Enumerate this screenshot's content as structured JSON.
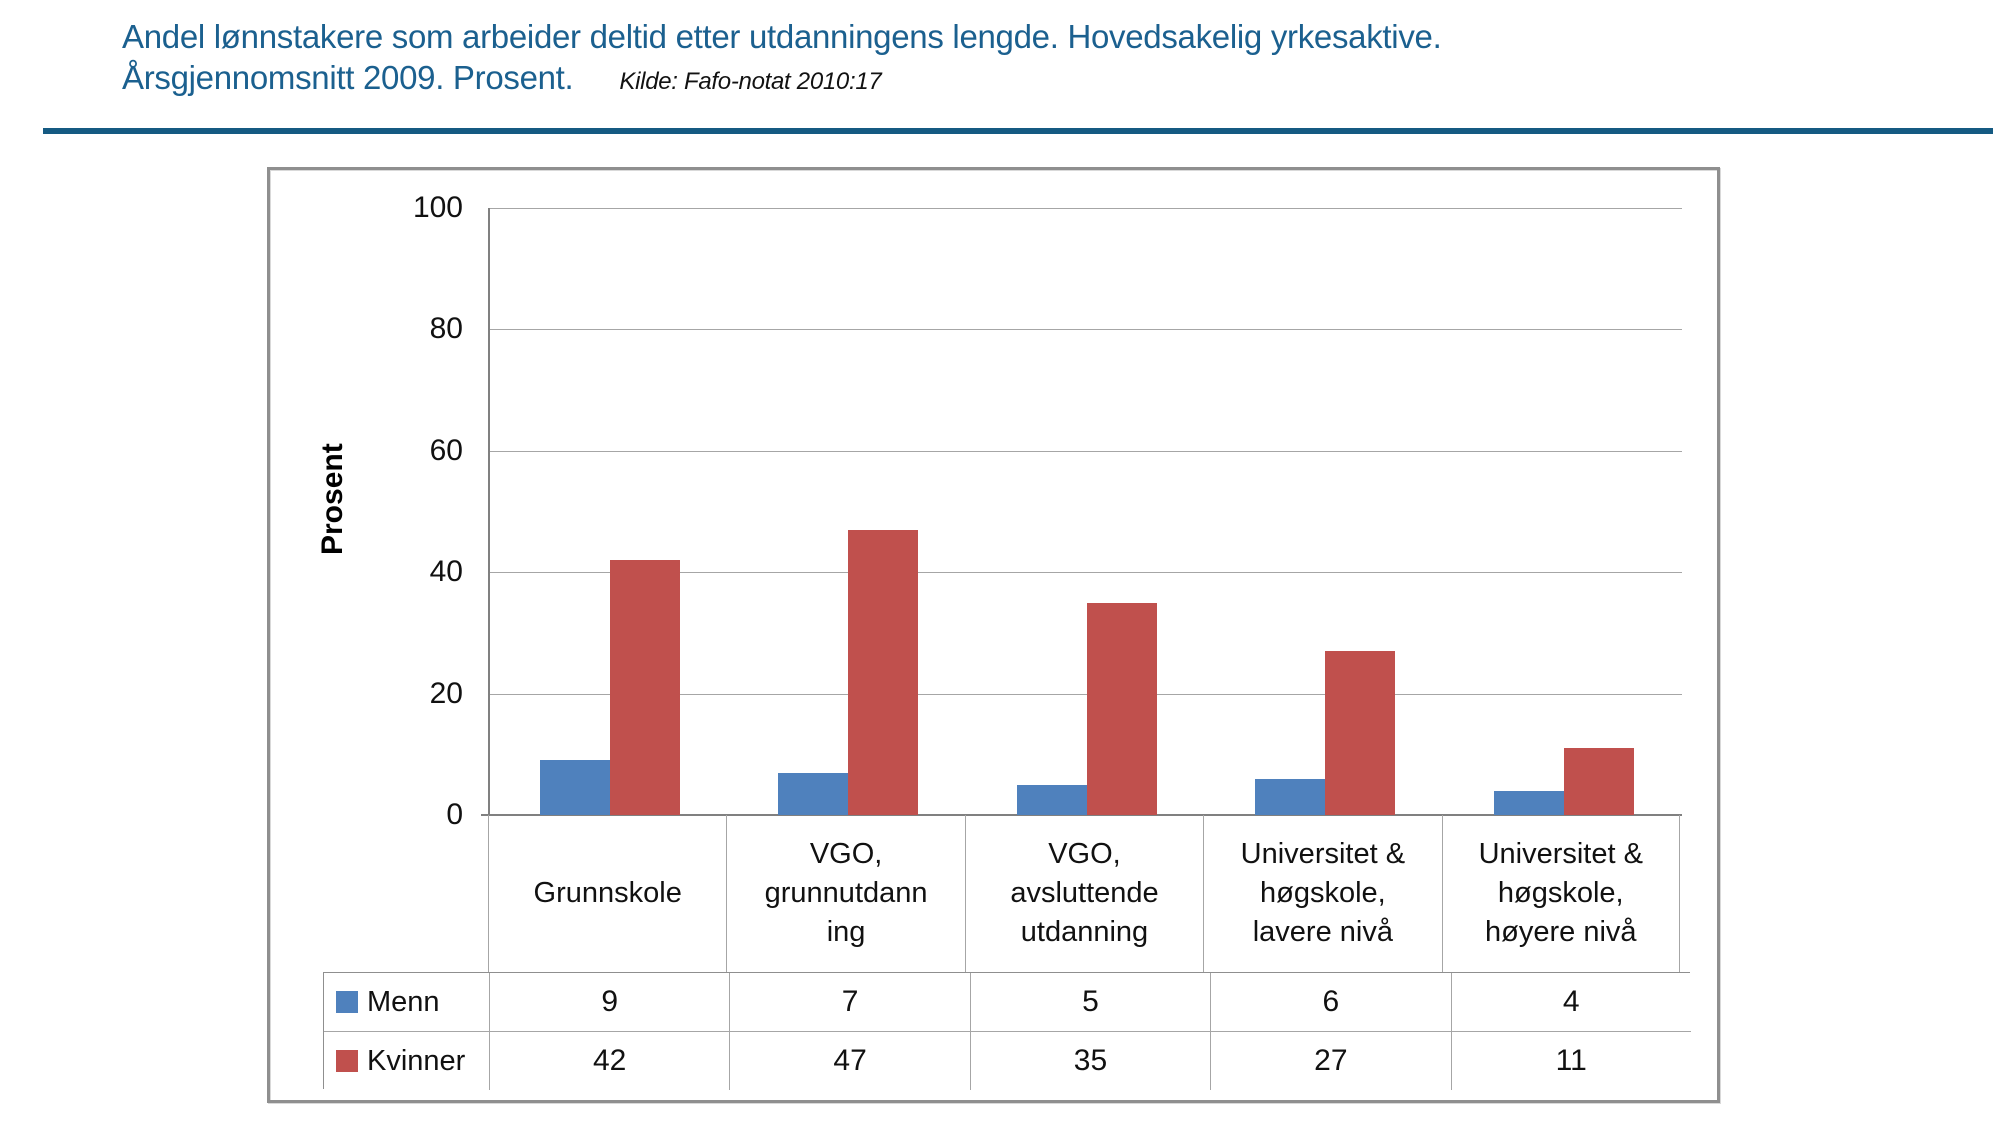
{
  "header": {
    "title_line1": "Andel lønnstakere som arbeider deltid etter utdanningens lengde. Hovedsakelig yrkesaktive.",
    "title_line2": "Årsgjennomsnitt 2009. Prosent.",
    "source": "Kilde: Fafo-notat 2010:17",
    "accent_color": "#1B608F"
  },
  "chart_data": {
    "type": "bar",
    "title": "",
    "ylabel": "Prosent",
    "xlabel": "",
    "ylim": [
      0,
      100
    ],
    "yticks": [
      0,
      20,
      40,
      60,
      80,
      100
    ],
    "grid": true,
    "legend_position": "table-left-bottom",
    "categories": [
      "Grunnskole",
      "VGO, grunnutdanning",
      "VGO, avsluttende utdanning",
      "Universitet & høgskole, lavere nivå",
      "Universitet & høgskole, høyere nivå"
    ],
    "category_display_lines": [
      [
        "Grunnskole"
      ],
      [
        "VGO,",
        "grunnutdann",
        "ing"
      ],
      [
        "VGO,",
        "avsluttende",
        "utdanning"
      ],
      [
        "Universitet &",
        "høgskole,",
        "lavere nivå"
      ],
      [
        "Universitet &",
        "høgskole,",
        "høyere nivå"
      ]
    ],
    "series": [
      {
        "name": "Menn",
        "color": "#4F81BD",
        "values": [
          9,
          7,
          5,
          6,
          4
        ]
      },
      {
        "name": "Kvinner",
        "color": "#C0504D",
        "values": [
          42,
          47,
          35,
          27,
          11
        ]
      }
    ]
  }
}
